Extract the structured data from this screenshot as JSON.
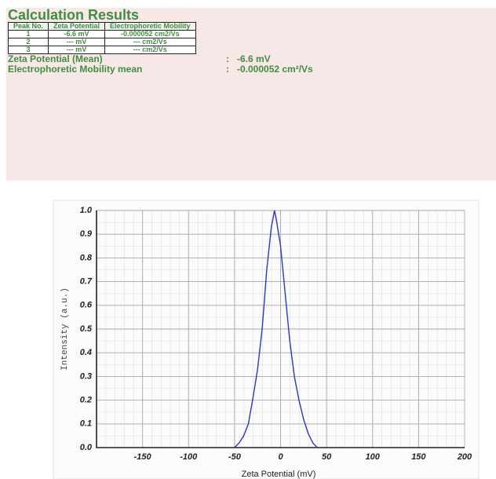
{
  "report": {
    "title": "Calculation Results",
    "table": {
      "header": [
        "Peak No.",
        "Zeta Potential",
        "Electrophoretic Mobility"
      ],
      "rows": [
        [
          "1",
          "-6.6 mV",
          "-0.000052 cm2/Vs"
        ],
        [
          "2",
          "--- mV",
          "--- cm2/Vs"
        ],
        [
          "3",
          "--- mV",
          "--- cm2/Vs"
        ]
      ]
    },
    "summary": [
      {
        "label": "Zeta Potential (Mean)",
        "separator": ":",
        "value": "-6.6 mV"
      },
      {
        "label": "Electrophoretic Mobility mean",
        "separator": ":",
        "value": "-0.000052 cm²/Vs"
      }
    ]
  },
  "chart_data": {
    "type": "line",
    "xlabel": "Zeta Potential (mV)",
    "ylabel": "Intensity (a.u.)",
    "x": [
      -50,
      -45,
      -40,
      -35,
      -30,
      -25,
      -20,
      -15,
      -10,
      -6.6,
      -5,
      0,
      5,
      10,
      15,
      20,
      25,
      30,
      35,
      40
    ],
    "series": [
      {
        "color": "#2a36c8",
        "values": [
          0,
          0.02,
          0.05,
          0.1,
          0.21,
          0.33,
          0.5,
          0.75,
          0.93,
          1.0,
          0.97,
          0.85,
          0.65,
          0.45,
          0.3,
          0.2,
          0.12,
          0.06,
          0.02,
          0
        ]
      }
    ],
    "xlim": [
      -200,
      200
    ],
    "xticks": [
      -150,
      -100,
      -50,
      0,
      50,
      100,
      150,
      200
    ],
    "ylim": [
      0,
      1
    ],
    "yticks": [
      {
        "value": 0,
        "label": "0.0"
      },
      0.1,
      0.2,
      0.3,
      0.4,
      0.5,
      0.6,
      0.7,
      0.8,
      0.9,
      {
        "value": 1,
        "label": "1.0"
      }
    ],
    "grid": true
  }
}
